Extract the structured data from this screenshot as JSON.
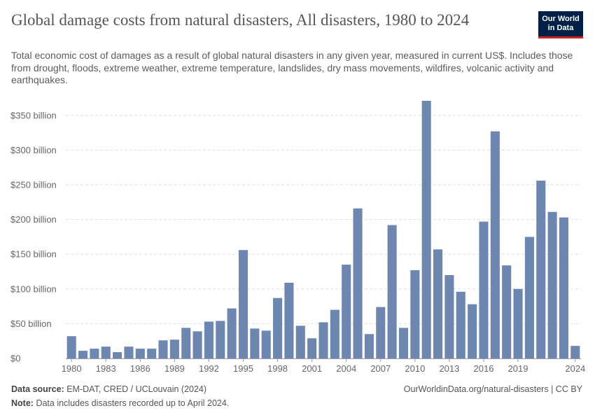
{
  "header": {
    "title": "Global damage costs from natural disasters, All disasters, 1980 to 2024",
    "subtitle": "Total economic cost of damages as a result of global natural disasters in any given year, measured in current US$. Includes those from drought, floods, extreme weather, extreme temperature, landslides, dry mass movements, wildfires, volcanic activity and earthquakes.",
    "logo_line1": "Our World",
    "logo_line2": "in Data"
  },
  "footer": {
    "source_label": "Data source:",
    "source_text": "EM-DAT, CRED / UCLouvain (2024)",
    "note_label": "Note:",
    "note_text": "Data includes disasters recorded up to April 2024.",
    "right_text": "OurWorldinData.org/natural-disasters | CC BY"
  },
  "colors": {
    "bar": "#6d87b1",
    "grid": "#dddddd",
    "axis": "#666666",
    "logo_bg": "#002147",
    "logo_accent": "#ce261e"
  },
  "chart_data": {
    "type": "bar",
    "x": [
      1980,
      1981,
      1982,
      1983,
      1984,
      1985,
      1986,
      1987,
      1988,
      1989,
      1990,
      1991,
      1992,
      1993,
      1994,
      1995,
      1996,
      1997,
      1998,
      1999,
      2000,
      2001,
      2002,
      2003,
      2004,
      2005,
      2006,
      2007,
      2008,
      2009,
      2010,
      2011,
      2012,
      2013,
      2014,
      2015,
      2016,
      2017,
      2018,
      2019,
      2020,
      2021,
      2022,
      2023,
      2024
    ],
    "values": [
      32,
      11,
      14,
      17,
      9,
      17,
      14,
      14,
      26,
      27,
      44,
      39,
      53,
      54,
      72,
      156,
      43,
      40,
      87,
      109,
      47,
      29,
      52,
      70,
      135,
      216,
      35,
      74,
      192,
      44,
      127,
      371,
      157,
      120,
      96,
      78,
      197,
      327,
      134,
      100,
      175,
      256,
      211,
      203,
      18
    ],
    "unit": "billion US$",
    "ylim": [
      0,
      370
    ],
    "y_ticks": [
      {
        "value": 0,
        "label": "$0"
      },
      {
        "value": 50,
        "label": "$50 billion"
      },
      {
        "value": 100,
        "label": "$100 billion"
      },
      {
        "value": 150,
        "label": "$150 billion"
      },
      {
        "value": 200,
        "label": "$200 billion"
      },
      {
        "value": 250,
        "label": "$250 billion"
      },
      {
        "value": 300,
        "label": "$300 billion"
      },
      {
        "value": 350,
        "label": "$350 billion"
      }
    ],
    "x_ticks": [
      "1980",
      "1983",
      "1986",
      "1989",
      "1992",
      "1995",
      "1998",
      "2001",
      "2004",
      "2007",
      "2010",
      "2013",
      "2016",
      "2019",
      "2024"
    ],
    "grid": true,
    "legend": "none"
  }
}
